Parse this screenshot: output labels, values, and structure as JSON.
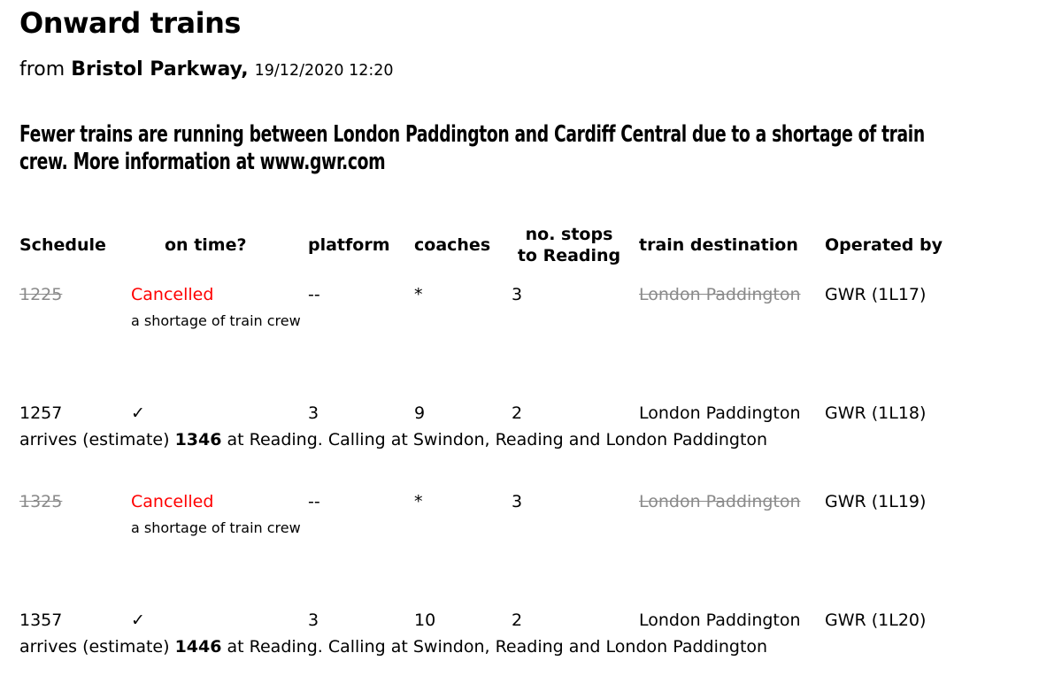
{
  "page": {
    "title": "Onward trains",
    "from_label": "from",
    "station": "Bristol Parkway,",
    "datetime": "19/12/2020 12:20",
    "notice_line1": "Fewer trains are running between London Paddington and Cardiff Central due to a shortage of train",
    "notice_line2": "crew. More information at www.gwr.com"
  },
  "colors": {
    "cancelled_red": "#ff0000",
    "struck_gray": "#8a8a8a"
  },
  "table": {
    "headers": {
      "schedule": "Schedule",
      "on_time": "on time?",
      "platform": "platform",
      "coaches": "coaches",
      "stops_line1": "no. stops",
      "stops_line2": "to Reading",
      "destination": "train destination",
      "operated_by": "Operated by"
    },
    "rows": [
      {
        "schedule": "1225",
        "status": "Cancelled",
        "platform": "--",
        "coaches": "*",
        "stops": "3",
        "destination": "London Paddington",
        "operated_by": "GWR (1L17)",
        "note": "a shortage of train crew"
      },
      {
        "schedule": "1257",
        "status": "✓",
        "platform": "3",
        "coaches": "9",
        "stops": "2",
        "destination": "London Paddington",
        "operated_by": "GWR (1L18)",
        "detail_prefix": "arrives (estimate)",
        "detail_time": "1346",
        "detail_suffix": "at Reading. Calling at Swindon, Reading and London Paddington"
      },
      {
        "schedule": "1325",
        "status": "Cancelled",
        "platform": "--",
        "coaches": "*",
        "stops": "3",
        "destination": "London Paddington",
        "operated_by": "GWR (1L19)",
        "note": "a shortage of train crew"
      },
      {
        "schedule": "1357",
        "status": "✓",
        "platform": "3",
        "coaches": "10",
        "stops": "2",
        "destination": "London Paddington",
        "operated_by": "GWR (1L20)",
        "detail_prefix": "arrives (estimate)",
        "detail_time": "1446",
        "detail_suffix": "at Reading. Calling at Swindon, Reading and London Paddington"
      }
    ]
  }
}
